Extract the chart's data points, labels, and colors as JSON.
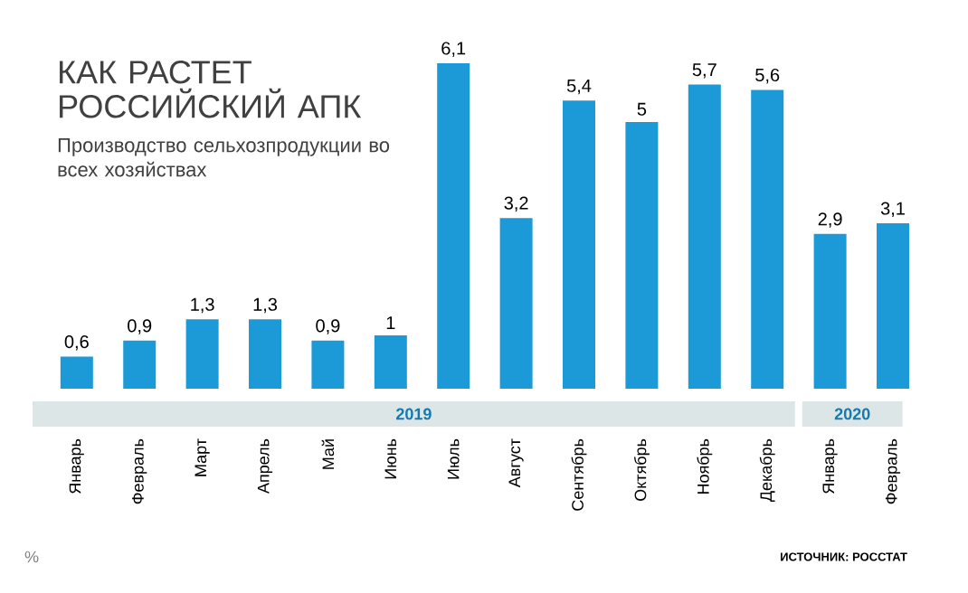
{
  "chart_data": {
    "type": "bar",
    "title": "КАК РАСТЕТ РОССИЙСКИЙ АПК",
    "subtitle": "Производство сельхозпродукции во всех хозяйствах",
    "categories": [
      "Январь",
      "Февраль",
      "Март",
      "Апрель",
      "Май",
      "Июнь",
      "Июль",
      "Август",
      "Сентябрь",
      "Октябрь",
      "Ноябрь",
      "Декабрь",
      "Январь",
      "Февраль"
    ],
    "values": [
      0.6,
      0.9,
      1.3,
      1.3,
      0.9,
      1,
      6.1,
      3.2,
      5.4,
      5,
      5.7,
      5.6,
      2.9,
      3.1
    ],
    "value_labels": [
      "0,6",
      "0,9",
      "1,3",
      "1,3",
      "0,9",
      "1",
      "6,1",
      "3,2",
      "5,4",
      "5",
      "5,7",
      "5,6",
      "2,9",
      "3,1"
    ],
    "color": "#1b9ad7",
    "annotations": [
      "2019",
      "2020",
      "ИСТОЧНИК: РОССТАТ",
      "%"
    ]
  }
}
